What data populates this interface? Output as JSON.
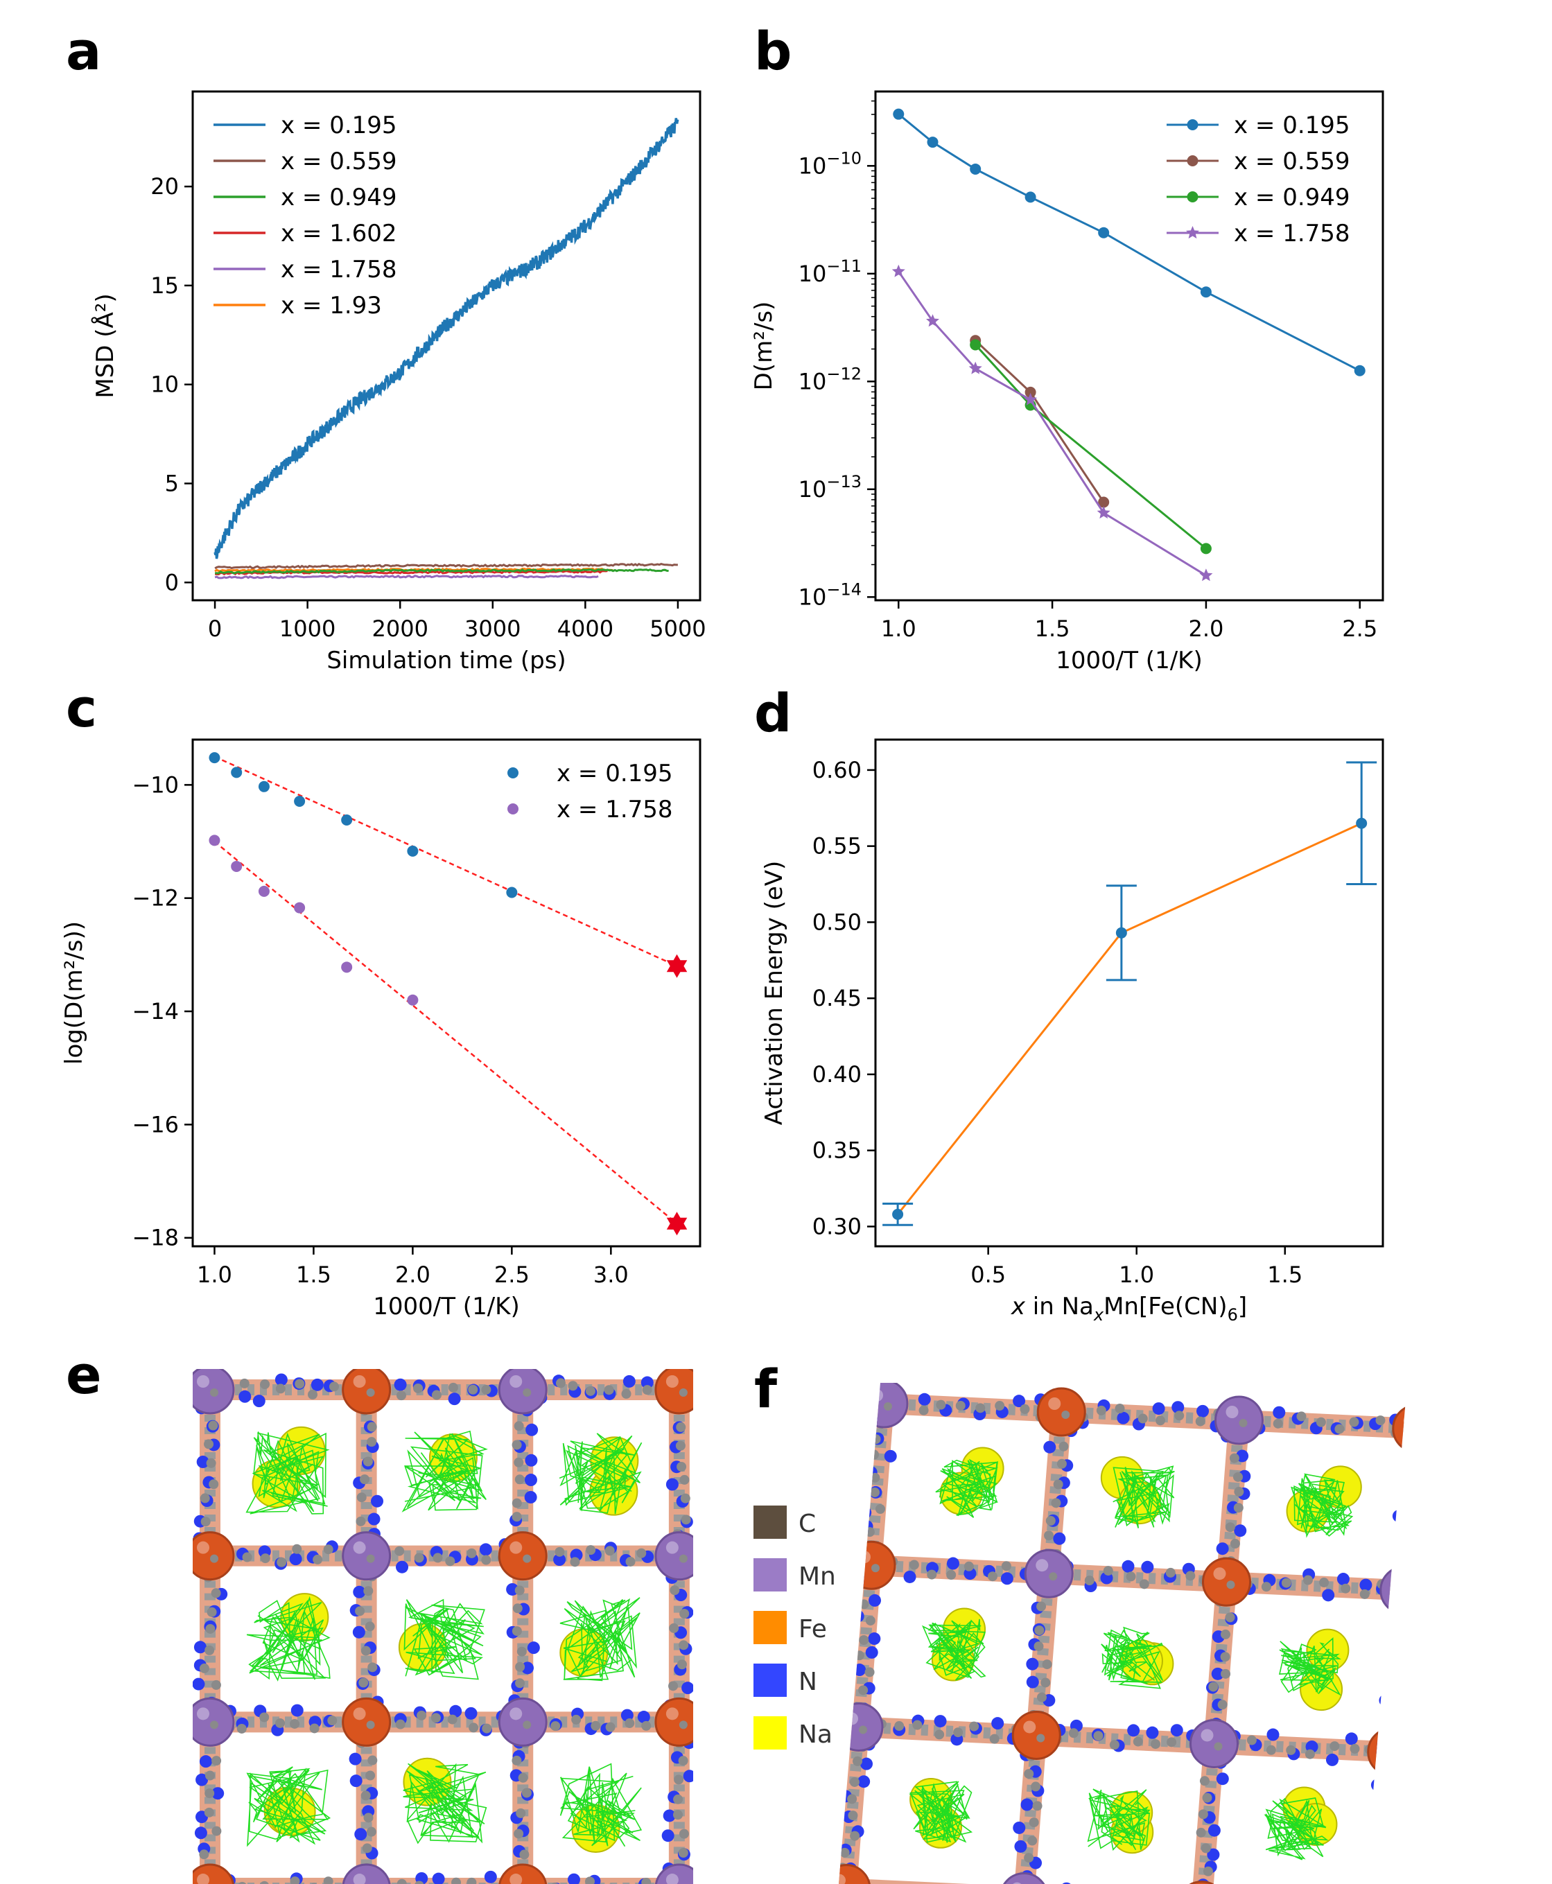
{
  "figure": {
    "panels": [
      "a",
      "b",
      "c",
      "d",
      "e",
      "f"
    ]
  },
  "chart_data": [
    {
      "panel": "a",
      "type": "line",
      "title": "",
      "xlabel": "Simulation time (ps)",
      "ylabel": "MSD (Å²)",
      "xlim": [
        -240,
        5240
      ],
      "ylim": [
        -0.9,
        24.8
      ],
      "xticks": [
        0,
        1000,
        2000,
        3000,
        4000,
        5000
      ],
      "xtick_labels": [
        "0",
        "1000",
        "2000",
        "3000",
        "4000",
        "5000"
      ],
      "yticks": [
        0,
        5,
        10,
        15,
        20
      ],
      "ytick_labels": [
        "0",
        "5",
        "10",
        "15",
        "20"
      ],
      "legend": "top-left",
      "series": [
        {
          "name": "x = 0.195",
          "color": "#1f77b4",
          "x": [
            0,
            100,
            250,
            500,
            750,
            1000,
            1500,
            2000,
            2500,
            3000,
            3500,
            4000,
            4500,
            5000
          ],
          "values": [
            1.3,
            2.3,
            3.6,
            4.9,
            5.9,
            7.0,
            9.0,
            10.6,
            13.0,
            15.0,
            16.2,
            18.0,
            20.5,
            23.2
          ]
        },
        {
          "name": "x = 0.559",
          "color": "#8c564b",
          "x": [
            0,
            1000,
            2000,
            3000,
            4000,
            5000
          ],
          "values": [
            0.75,
            0.8,
            0.85,
            0.85,
            0.88,
            0.9
          ]
        },
        {
          "name": "x = 0.949",
          "color": "#2ca02c",
          "x": [
            0,
            1000,
            2000,
            3000,
            4000,
            4900
          ],
          "values": [
            0.5,
            0.55,
            0.6,
            0.6,
            0.62,
            0.62
          ]
        },
        {
          "name": "x = 1.602",
          "color": "#d62728",
          "x": [
            0,
            1000,
            2000,
            3000,
            4250
          ],
          "values": [
            0.45,
            0.5,
            0.5,
            0.52,
            0.55
          ]
        },
        {
          "name": "x = 1.758",
          "color": "#9467bd",
          "x": [
            0,
            1000,
            2000,
            3000,
            4000,
            4150
          ],
          "values": [
            0.25,
            0.28,
            0.3,
            0.3,
            0.3,
            0.3
          ]
        },
        {
          "name": "x = 1.93",
          "color": "#ff7f0e",
          "x": [
            0,
            1000,
            2000,
            3000,
            4300
          ],
          "values": [
            0.6,
            0.62,
            0.65,
            0.65,
            0.66
          ]
        }
      ]
    },
    {
      "panel": "b",
      "type": "line",
      "title": "",
      "xlabel": "1000/T (1/K)",
      "ylabel": "D(m²/s)",
      "yscale": "log",
      "xlim": [
        0.925,
        2.575
      ],
      "ylim_log10": [
        -14.03,
        -9.31
      ],
      "xticks": [
        1.0,
        1.5,
        2.0,
        2.5
      ],
      "xtick_labels": [
        "1.0",
        "1.5",
        "2.0",
        "2.5"
      ],
      "yticks_log10": [
        -14,
        -13,
        -12,
        -11,
        -10
      ],
      "ytick_labels": [
        "10−14",
        "10−13",
        "10−12",
        "10−11",
        "10−10"
      ],
      "legend": "top-right",
      "series": [
        {
          "name": "x = 0.195",
          "color": "#1f77b4",
          "marker": "circle",
          "x": [
            1.0,
            1.111,
            1.25,
            1.429,
            1.667,
            2.0,
            2.5
          ],
          "log10_values": [
            -9.52,
            -9.78,
            -10.03,
            -10.29,
            -10.62,
            -11.17,
            -11.9
          ]
        },
        {
          "name": "x = 0.559",
          "color": "#8c564b",
          "marker": "circle",
          "x": [
            1.25,
            1.429,
            1.667
          ],
          "log10_values": [
            -11.62,
            -12.1,
            -13.12
          ]
        },
        {
          "name": "x = 0.949",
          "color": "#2ca02c",
          "marker": "circle",
          "x": [
            1.25,
            1.429,
            2.0
          ],
          "log10_values": [
            -11.66,
            -12.22,
            -13.55
          ]
        },
        {
          "name": "x = 1.758",
          "color": "#9467bd",
          "marker": "star",
          "x": [
            1.0,
            1.111,
            1.25,
            1.429,
            1.667,
            2.0
          ],
          "log10_values": [
            -10.98,
            -11.44,
            -11.88,
            -12.17,
            -13.22,
            -13.8
          ]
        }
      ]
    },
    {
      "panel": "c",
      "type": "scatter",
      "title": "",
      "xlabel": "1000/T (1/K)",
      "ylabel": "log(D(m²/s))",
      "xlim": [
        0.89,
        3.45
      ],
      "ylim": [
        -18.15,
        -9.2
      ],
      "xticks": [
        1.0,
        1.5,
        2.0,
        2.5,
        3.0
      ],
      "xtick_labels": [
        "1.0",
        "1.5",
        "2.0",
        "2.5",
        "3.0"
      ],
      "yticks": [
        -18,
        -16,
        -14,
        -12,
        -10
      ],
      "ytick_labels": [
        "−18",
        "−16",
        "−14",
        "−12",
        "−10"
      ],
      "legend": "top-right",
      "series": [
        {
          "name": "x = 0.195",
          "color": "#1f77b4",
          "x": [
            1.0,
            1.111,
            1.25,
            1.429,
            1.667,
            2.0,
            2.5
          ],
          "values": [
            -9.52,
            -9.78,
            -10.03,
            -10.29,
            -10.62,
            -11.17,
            -11.9
          ]
        },
        {
          "name": "x = 1.758",
          "color": "#9467bd",
          "x": [
            1.0,
            1.111,
            1.25,
            1.429,
            1.667,
            2.0
          ],
          "values": [
            -10.98,
            -11.44,
            -11.88,
            -12.17,
            -13.22,
            -13.8
          ]
        }
      ],
      "fits": [
        {
          "color": "#ff2020",
          "x": [
            1.0,
            3.333
          ],
          "values": [
            -9.5,
            -13.2
          ]
        },
        {
          "color": "#ff2020",
          "x": [
            1.0,
            3.333
          ],
          "values": [
            -11.0,
            -17.75
          ]
        }
      ],
      "extrapolated_points": {
        "color": "#e8001c",
        "marker": "star6",
        "x": [
          3.333,
          3.333
        ],
        "values": [
          -13.2,
          -17.75
        ]
      }
    },
    {
      "panel": "d",
      "type": "line",
      "title": "",
      "xlabel": "x in NaxMn[Fe(CN)6]",
      "xlabel_parts": [
        "x",
        " in Na",
        "x",
        "Mn[Fe(CN)",
        "6",
        "]"
      ],
      "ylabel": "Activation Energy (eV)",
      "xlim": [
        0.12,
        1.83
      ],
      "ylim": [
        0.287,
        0.62
      ],
      "xticks": [
        0.5,
        1.0,
        1.5
      ],
      "xtick_labels": [
        "0.5",
        "1.0",
        "1.5"
      ],
      "yticks": [
        0.3,
        0.35,
        0.4,
        0.45,
        0.5,
        0.55,
        0.6
      ],
      "ytick_labels": [
        "0.30",
        "0.35",
        "0.40",
        "0.45",
        "0.50",
        "0.55",
        "0.60"
      ],
      "series": [
        {
          "name": "Activation energy",
          "color": "#ff7f0e",
          "point_color": "#1f77b4",
          "x": [
            0.195,
            0.949,
            1.758
          ],
          "values": [
            0.308,
            0.493,
            0.565
          ],
          "errors": [
            0.007,
            0.031,
            0.04
          ]
        }
      ]
    }
  ],
  "structures": {
    "panel_e": "e",
    "panel_f": "f",
    "legend": [
      {
        "label": "C",
        "color": "#5d4e3e"
      },
      {
        "label": "Mn",
        "color": "#9b7cc6"
      },
      {
        "label": "Fe",
        "color": "#ff8c00"
      },
      {
        "label": "N",
        "color": "#3346ff"
      },
      {
        "label": "Na",
        "color": "#ffff00"
      }
    ],
    "colors": {
      "mn_atom": "#8e6cb8",
      "fe_atom": "#d9541e",
      "c_atom": "#8a8a8a",
      "n_atom": "#2a3bf0",
      "na_atom": "#f2f20a",
      "trajectory": "#22dd22"
    }
  }
}
